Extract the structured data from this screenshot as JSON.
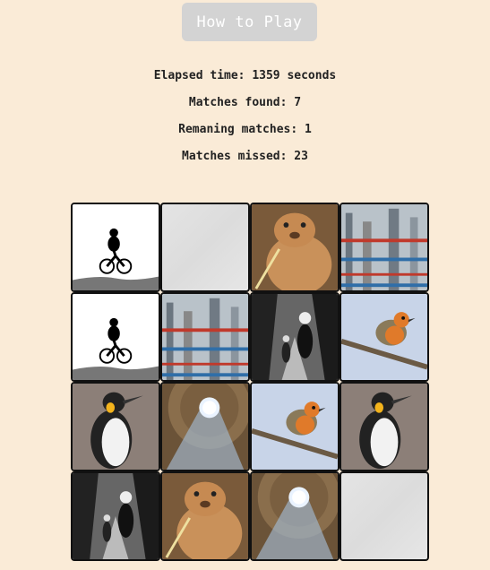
{
  "header": {
    "how_to_play_label": "How to Play"
  },
  "stats": {
    "elapsed": "Elapsed time: 1359 seconds",
    "found": "Matches found: 7",
    "remaining": "Remaning matches: 1",
    "missed": "Matches missed: 23"
  },
  "board": {
    "rows": [
      [
        "cyclist",
        "face-down",
        "marmot",
        "refinery"
      ],
      [
        "cyclist",
        "refinery",
        "walkers",
        "robin"
      ],
      [
        "penguin",
        "dome-oculus",
        "robin",
        "penguin"
      ],
      [
        "walkers",
        "marmot",
        "dome-oculus",
        "face-down"
      ]
    ]
  }
}
